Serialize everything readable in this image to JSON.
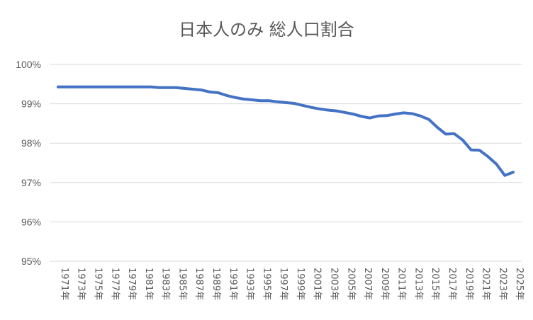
{
  "chart_data": {
    "type": "line",
    "title": "日本人のみ 総人口割合",
    "xlabel": "",
    "ylabel": "",
    "ylim": [
      95,
      100
    ],
    "yticks": [
      95,
      96,
      97,
      98,
      99,
      100
    ],
    "ytick_labels": [
      "95%",
      "96%",
      "97%",
      "98%",
      "99%",
      "100%"
    ],
    "grid": true,
    "x_labels": [
      "1971年",
      "1973年",
      "1975年",
      "1977年",
      "1979年",
      "1981年",
      "1983年",
      "1985年",
      "1987年",
      "1989年",
      "1991年",
      "1993年",
      "1995年",
      "1997年",
      "1999年",
      "2001年",
      "2003年",
      "2005年",
      "2007年",
      "2009年",
      "2011年",
      "2013年",
      "2015年",
      "2017年",
      "2019年",
      "2021年",
      "2023年",
      "2025年"
    ],
    "series": [
      {
        "name": "日本人のみ 総人口割合",
        "color": "#4472c4",
        "x": [
          1971,
          1972,
          1973,
          1974,
          1975,
          1976,
          1977,
          1978,
          1979,
          1980,
          1981,
          1982,
          1983,
          1984,
          1985,
          1986,
          1987,
          1988,
          1989,
          1990,
          1991,
          1992,
          1993,
          1994,
          1995,
          1996,
          1997,
          1998,
          1999,
          2000,
          2001,
          2002,
          2003,
          2004,
          2005,
          2006,
          2007,
          2008,
          2009,
          2010,
          2011,
          2012,
          2013,
          2014,
          2015,
          2016,
          2017,
          2018,
          2019,
          2020,
          2021,
          2022,
          2023,
          2024,
          2025
        ],
        "values": [
          99.43,
          99.43,
          99.43,
          99.43,
          99.43,
          99.43,
          99.43,
          99.43,
          99.43,
          99.43,
          99.43,
          99.43,
          99.41,
          99.41,
          99.41,
          99.39,
          99.37,
          99.35,
          99.3,
          99.28,
          99.21,
          99.16,
          99.12,
          99.1,
          99.08,
          99.08,
          99.05,
          99.03,
          99.01,
          98.96,
          98.91,
          98.87,
          98.84,
          98.82,
          98.78,
          98.74,
          98.68,
          98.64,
          98.69,
          98.7,
          98.74,
          98.77,
          98.75,
          98.69,
          98.6,
          98.4,
          98.23,
          98.24,
          98.08,
          97.83,
          97.82,
          97.66,
          97.47,
          97.18,
          97.26
        ]
      }
    ]
  }
}
